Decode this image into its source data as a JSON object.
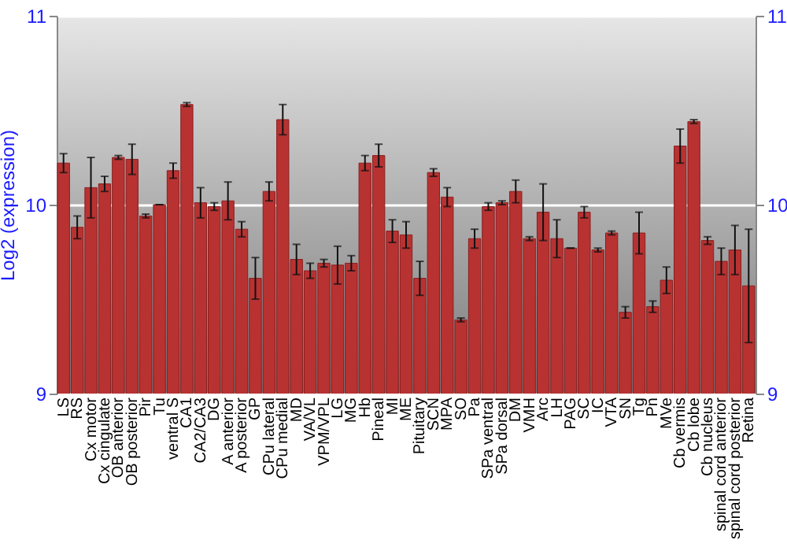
{
  "chart_data": {
    "type": "bar",
    "ylabel": "Log2 (expression)",
    "categories": [
      "LS",
      "RS",
      "Cx motor",
      "Cx cingulate",
      "OB anterior",
      "OB posterior",
      "Pir",
      "Tu",
      "ventral S",
      "CA1",
      "CA2/CA3",
      "DG",
      "A anterior",
      "A posterior",
      "GP",
      "CPu lateral",
      "CPu medial",
      "MD",
      "VA/VL",
      "VPM/VPL",
      "LG",
      "MG",
      "Hb",
      "Pineal",
      "MI",
      "ME",
      "Pituitary",
      "SCN",
      "MPA",
      "SO",
      "Pa",
      "SPa ventral",
      "SPa dorsal",
      "DM",
      "VMH",
      "Arc",
      "LH",
      "PAG",
      "SC",
      "IC",
      "VTA",
      "SN",
      "Tg",
      "Pn",
      "MVe",
      "Cb vermis",
      "Cb lobe",
      "Cb nucleus",
      "spinal cord anterior",
      "spinal cord posterior",
      "Retina"
    ],
    "values": [
      10.22,
      9.88,
      10.09,
      10.11,
      10.25,
      10.24,
      9.94,
      10.0,
      10.18,
      10.53,
      10.01,
      9.99,
      10.02,
      9.87,
      9.61,
      10.07,
      10.45,
      9.71,
      9.65,
      9.69,
      9.68,
      9.69,
      10.22,
      10.26,
      9.86,
      9.84,
      9.61,
      10.17,
      10.04,
      9.39,
      9.82,
      9.99,
      10.01,
      10.07,
      9.82,
      9.96,
      9.82,
      9.77,
      9.96,
      9.76,
      9.85,
      9.43,
      9.85,
      9.46,
      9.6,
      10.31,
      10.44,
      9.81,
      9.7,
      9.76,
      9.57
    ],
    "errors": [
      0.05,
      0.06,
      0.16,
      0.04,
      0.01,
      0.08,
      0.01,
      0.0,
      0.04,
      0.01,
      0.08,
      0.02,
      0.1,
      0.04,
      0.11,
      0.05,
      0.08,
      0.08,
      0.04,
      0.02,
      0.1,
      0.04,
      0.04,
      0.06,
      0.06,
      0.07,
      0.09,
      0.02,
      0.05,
      0.01,
      0.05,
      0.02,
      0.01,
      0.06,
      0.01,
      0.15,
      0.1,
      0.0,
      0.03,
      0.01,
      0.01,
      0.03,
      0.11,
      0.03,
      0.07,
      0.09,
      0.01,
      0.02,
      0.07,
      0.13,
      0.3
    ],
    "color": "#b83232",
    "ylim": [
      9,
      11
    ],
    "yticks": [
      9,
      10,
      11
    ],
    "y2lim": [
      9,
      11
    ],
    "y2ticks": [
      9,
      10,
      11
    ],
    "grid": "y"
  }
}
